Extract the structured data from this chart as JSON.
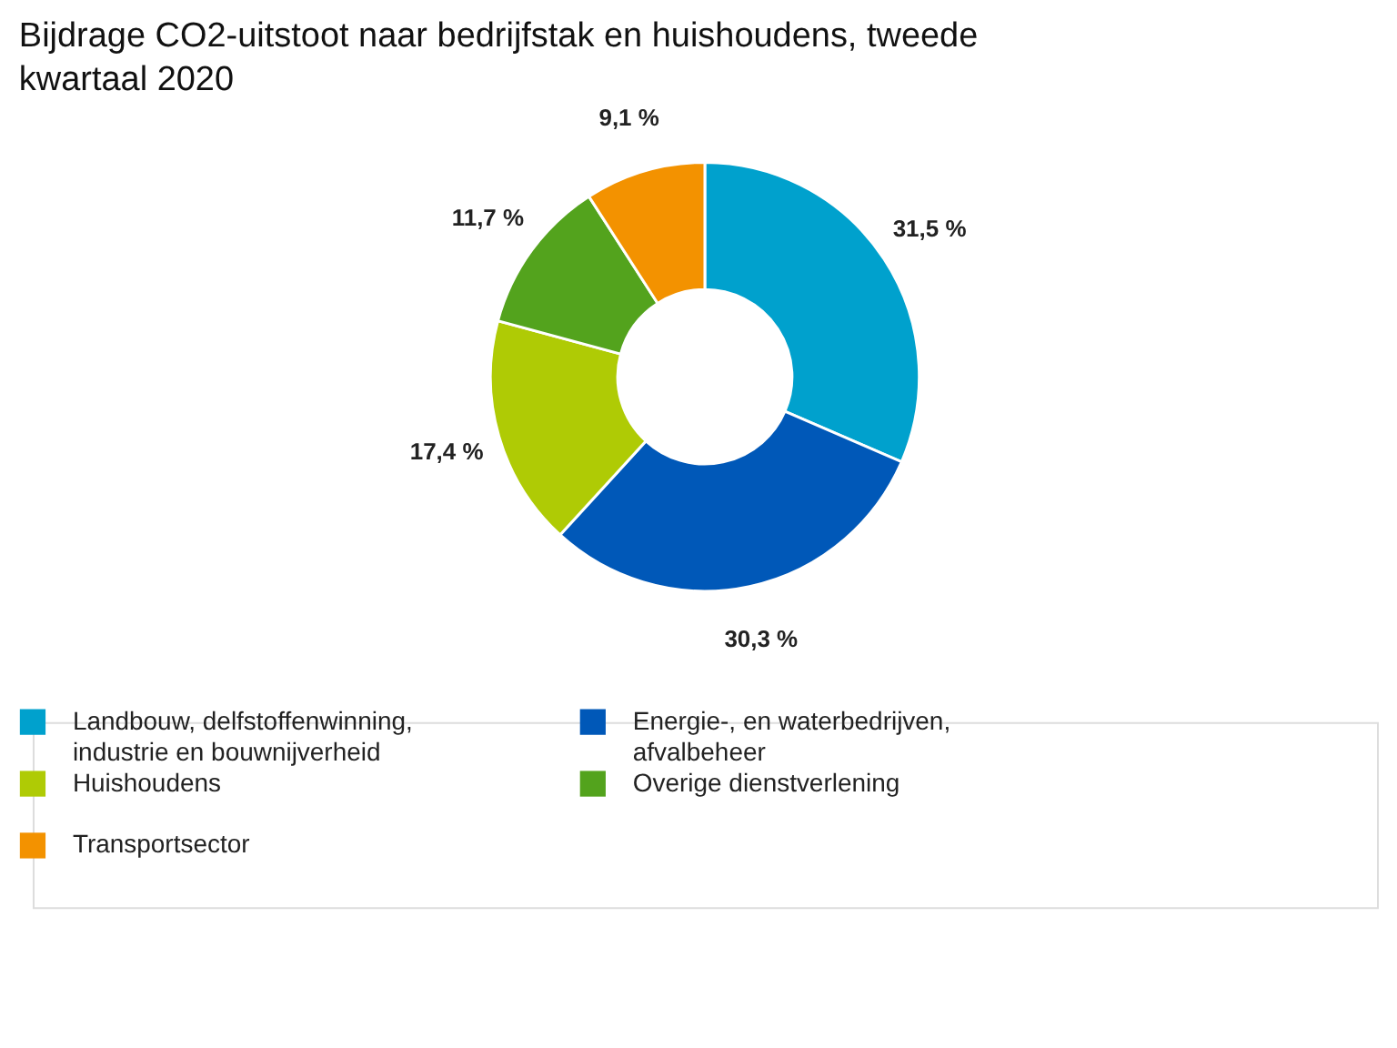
{
  "chart_data": {
    "type": "donut",
    "title": "Bijdrage CO2-uitstoot naar bedrijfstak en huishoudens, tweede kwartaal 2020",
    "categories": [
      "Landbouw, delfstoffenwinning, industrie en bouwnijverheid",
      "Energie-, en waterbedrijven, afvalbeheer",
      "Huishoudens",
      "Overige dienstverlening",
      "Transportsector"
    ],
    "values": [
      31.5,
      30.3,
      17.4,
      11.7,
      9.1
    ],
    "value_labels": [
      "31,5 %",
      "30,3 %",
      "17,4 %",
      "11,7 %",
      "9,1 %"
    ],
    "colors": [
      "#00a1cd",
      "#0058b8",
      "#afcb05",
      "#53a31d",
      "#f39200"
    ],
    "legend": "bottom"
  }
}
